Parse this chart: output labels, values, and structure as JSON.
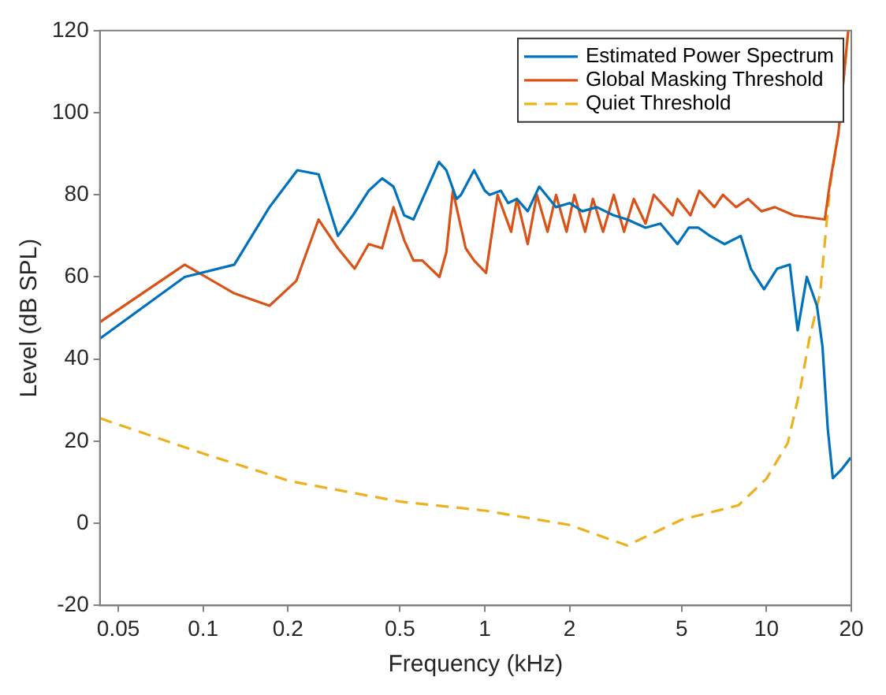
{
  "chart_data": {
    "type": "line",
    "xlabel": "Frequency (kHz)",
    "ylabel": "Level (dB SPL)",
    "log": "x",
    "xlim": [
      0.043,
      20
    ],
    "xticks": [
      0.05,
      0.1,
      0.2,
      0.5,
      1,
      2,
      5,
      10,
      20
    ],
    "ylim": [
      -20,
      120
    ],
    "yticks": [
      -20,
      0,
      20,
      40,
      60,
      80,
      100,
      120
    ],
    "grid": false,
    "legend": "top right",
    "marker": "none",
    "series": [
      {
        "name": "Estimated Power Spectrum",
        "color": "#0072bd",
        "line_style": "solid",
        "x": [
          0.043,
          0.086,
          0.129,
          0.172,
          0.216,
          0.257,
          0.301,
          0.34,
          0.387,
          0.432,
          0.474,
          0.517,
          0.558,
          0.687,
          0.73,
          0.794,
          0.823,
          0.916,
          1.0,
          1.04,
          1.14,
          1.21,
          1.3,
          1.42,
          1.56,
          1.79,
          2.0,
          2.22,
          2.5,
          2.87,
          3.2,
          3.72,
          4.2,
          4.83,
          5.3,
          5.73,
          6.3,
          7.1,
          8.1,
          8.8,
          9.8,
          10.9,
          12.1,
          12.9,
          13.9,
          15.1,
          15.8,
          16.5,
          17.2,
          18.4,
          19.9
        ],
        "values": [
          45,
          60,
          63,
          77,
          86,
          85,
          70,
          75,
          81,
          84,
          82,
          75,
          74,
          88,
          86,
          79,
          80,
          86,
          81,
          80,
          81,
          78,
          79,
          76,
          82,
          77,
          78,
          76,
          77,
          75,
          74,
          72,
          73,
          68,
          72,
          72,
          70,
          68,
          70,
          62,
          57,
          62,
          63,
          47,
          60,
          53,
          43,
          23,
          11,
          13,
          16
        ]
      },
      {
        "name": "Global Masking Threshold",
        "color": "#d95319",
        "line_style": "solid",
        "x": [
          0.043,
          0.086,
          0.129,
          0.172,
          0.214,
          0.257,
          0.301,
          0.345,
          0.387,
          0.432,
          0.474,
          0.517,
          0.558,
          0.6,
          0.69,
          0.73,
          0.77,
          0.855,
          0.916,
          1.01,
          1.11,
          1.24,
          1.3,
          1.42,
          1.53,
          1.67,
          1.79,
          1.95,
          2.08,
          2.27,
          2.42,
          2.63,
          2.87,
          3.12,
          3.38,
          3.72,
          3.98,
          4.64,
          4.83,
          5.37,
          5.77,
          6.53,
          7.0,
          7.8,
          8.6,
          9.6,
          10.7,
          12.5,
          16.1,
          16.8,
          18,
          19.5
        ],
        "values": [
          49,
          63,
          56,
          53,
          59,
          74,
          67,
          62,
          68,
          67,
          77,
          69,
          64,
          64,
          60,
          66,
          81,
          67,
          64,
          61,
          80,
          71,
          79,
          68,
          80,
          71,
          80,
          71,
          80,
          71,
          79,
          71,
          80,
          71,
          79,
          73,
          80,
          75,
          79,
          75,
          81,
          77,
          80,
          77,
          79,
          76,
          77,
          75,
          74,
          83,
          95,
          120
        ]
      },
      {
        "name": "Quiet Threshold",
        "color": "#edb120",
        "line_style": "dashed",
        "x": [
          0.043,
          0.1,
          0.203,
          0.5,
          1.0,
          2.0,
          3.2,
          5.0,
          7.95,
          10.0,
          11.9,
          13.2,
          14.2,
          15.5,
          16.8,
          18,
          19.5
        ],
        "values": [
          25.6,
          17,
          10.3,
          5.3,
          3.1,
          -0.4,
          -5.4,
          0.9,
          4.4,
          10.9,
          19.6,
          33,
          45,
          56,
          82,
          95,
          120
        ]
      }
    ]
  }
}
